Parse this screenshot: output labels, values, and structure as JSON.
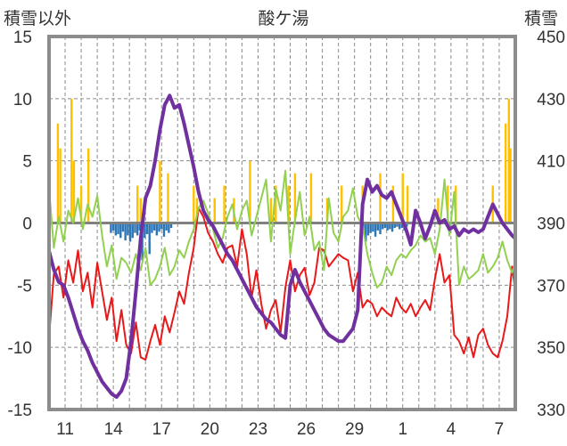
{
  "chart_data": {
    "type": "line",
    "title": "酸ケ湯",
    "left_axis_label": "積雪以外",
    "right_axis_label": "積雪",
    "left_ylim": [
      -15,
      15
    ],
    "left_yticks": [
      -15,
      -10,
      -5,
      0,
      5,
      10,
      15
    ],
    "right_ylim": [
      330,
      450
    ],
    "right_yticks": [
      330,
      350,
      370,
      390,
      410,
      430,
      450
    ],
    "x_range": [
      0,
      29
    ],
    "x_ticks": [
      {
        "x": 1,
        "label": "11"
      },
      {
        "x": 4,
        "label": "14"
      },
      {
        "x": 7,
        "label": "17"
      },
      {
        "x": 10,
        "label": "20"
      },
      {
        "x": 13,
        "label": "23"
      },
      {
        "x": 16,
        "label": "26"
      },
      {
        "x": 19,
        "label": "29"
      },
      {
        "x": 22,
        "label": "1"
      },
      {
        "x": 25,
        "label": "4"
      },
      {
        "x": 28,
        "label": "7"
      }
    ],
    "grid": "dashed",
    "series": [
      {
        "name": "red-series",
        "axis": "left",
        "color": "#e8191a",
        "x": [
          0,
          0.3,
          0.6,
          0.9,
          1.2,
          1.5,
          1.8,
          2.1,
          2.4,
          2.7,
          3,
          3.3,
          3.6,
          3.9,
          4.2,
          4.5,
          4.8,
          5.1,
          5.4,
          5.7,
          6,
          6.3,
          6.6,
          6.9,
          7.2,
          7.5,
          7.8,
          8.1,
          8.4,
          8.7,
          9,
          9.3,
          9.6,
          9.9,
          10.2,
          10.5,
          10.8,
          11.1,
          11.4,
          11.7,
          12,
          12.3,
          12.6,
          12.9,
          13.2,
          13.5,
          13.8,
          14.1,
          14.4,
          14.7,
          15,
          15.3,
          15.6,
          15.9,
          16.2,
          16.5,
          16.8,
          17.1,
          17.4,
          17.7,
          18,
          18.3,
          18.6,
          18.9,
          19.2,
          19.5,
          19.8,
          20.1,
          20.4,
          20.7,
          21,
          21.3,
          21.6,
          21.9,
          22.2,
          22.5,
          22.8,
          23.1,
          23.4,
          23.7,
          24,
          24.3,
          24.6,
          24.9,
          25.2,
          25.5,
          25.8,
          26.1,
          26.4,
          26.7,
          27,
          27.3,
          27.6,
          27.9,
          28.2,
          28.5,
          28.8,
          29
        ],
        "values": [
          -9.2,
          -4.1,
          -3.5,
          -6.0,
          -3.0,
          -4.8,
          -2.2,
          -5.5,
          -4.0,
          -6.8,
          -3.2,
          -5.5,
          -7.8,
          -6.0,
          -9.5,
          -7.0,
          -9.8,
          -10.5,
          -8.0,
          -10.8,
          -11.0,
          -9.5,
          -8.2,
          -9.8,
          -7.5,
          -8.8,
          -7.2,
          -5.5,
          -6.5,
          -4.0,
          -2.0,
          1.2,
          0.5,
          -0.8,
          -1.5,
          -2.5,
          -3.2,
          -2.0,
          -1.8,
          -3.5,
          -0.5,
          -2.5,
          -6.0,
          -3.8,
          -6.5,
          -8.5,
          -7.0,
          -6.2,
          -8.8,
          -5.2,
          -3.0,
          -5.5,
          -4.2,
          -3.6,
          -5.8,
          -4.8,
          -2.0,
          -2.2,
          -3.5,
          -3.0,
          -2.5,
          -2.8,
          -3.0,
          -5.5,
          -4.0,
          -6.8,
          -6.2,
          -6.5,
          -7.5,
          -6.8,
          -7.2,
          -7.5,
          -6.0,
          -6.8,
          -7.2,
          -6.5,
          -7.5,
          -6.8,
          -6.2,
          -7.0,
          -4.5,
          -2.5,
          -4.8,
          -4.2,
          -9.0,
          -9.5,
          -10.5,
          -9.2,
          -10.8,
          -9.0,
          -8.5,
          -9.8,
          -10.5,
          -10.8,
          -9.5,
          -7.5,
          -3.5,
          -5.5
        ]
      },
      {
        "name": "green-series",
        "axis": "left",
        "color": "#92d050",
        "x": [
          0,
          0.3,
          0.6,
          0.9,
          1.2,
          1.5,
          1.8,
          2.1,
          2.4,
          2.7,
          3,
          3.3,
          3.6,
          3.9,
          4.2,
          4.5,
          4.8,
          5.1,
          5.4,
          5.7,
          6,
          6.3,
          6.6,
          6.9,
          7.2,
          7.5,
          7.8,
          8.1,
          8.4,
          8.7,
          9,
          9.3,
          9.6,
          9.9,
          10.2,
          10.5,
          10.8,
          11.1,
          11.4,
          11.7,
          12,
          12.3,
          12.6,
          12.9,
          13.2,
          13.5,
          13.8,
          14.1,
          14.4,
          14.7,
          15,
          15.3,
          15.6,
          15.9,
          16.2,
          16.5,
          16.8,
          17.1,
          17.4,
          17.7,
          18,
          18.3,
          18.6,
          18.9,
          19.2,
          19.5,
          19.8,
          20.1,
          20.4,
          20.7,
          21,
          21.3,
          21.6,
          21.9,
          22.2,
          22.5,
          22.8,
          23.1,
          23.4,
          23.7,
          24,
          24.3,
          24.6,
          24.9,
          25.2,
          25.5,
          25.8,
          26.1,
          26.4,
          26.7,
          27,
          27.3,
          27.6,
          27.9,
          28.2,
          28.5,
          28.8,
          29
        ],
        "values": [
          2.8,
          -2.0,
          0.5,
          -1.5,
          1.0,
          0.0,
          2.0,
          -0.5,
          1.5,
          0.5,
          2.2,
          -1.0,
          -3.5,
          -1.8,
          -4.5,
          -2.8,
          -3.2,
          -4.0,
          -2.5,
          -3.8,
          -2.0,
          -5.0,
          -4.5,
          -3.5,
          -2.0,
          -4.2,
          -3.5,
          -2.2,
          -2.8,
          -1.5,
          -0.5,
          1.2,
          1.8,
          0.8,
          -0.5,
          -2.0,
          -1.2,
          0.5,
          1.5,
          -0.5,
          1.0,
          1.8,
          -1.0,
          0.5,
          2.0,
          3.5,
          -1.5,
          2.8,
          1.0,
          4.2,
          -2.5,
          0.2,
          2.5,
          -1.0,
          0.5,
          -2.2,
          -1.5,
          -3.8,
          2.0,
          -0.8,
          -1.5,
          0.5,
          1.0,
          2.8,
          0.5,
          -0.2,
          -2.5,
          -4.0,
          -5.2,
          -4.8,
          -3.5,
          -4.2,
          -3.0,
          -2.5,
          -2.8,
          -2.2,
          -1.8,
          -1.0,
          -1.5,
          -1.2,
          -2.5,
          -0.5,
          3.5,
          -1.0,
          2.5,
          -5.0,
          -3.5,
          -4.5,
          -4.2,
          -3.8,
          -2.5,
          -4.0,
          -3.5,
          -2.8,
          -1.5,
          -3.0,
          -4.0,
          -3.2
        ]
      },
      {
        "name": "purple-snow-depth",
        "axis": "right",
        "color": "#7030a0",
        "x": [
          0,
          0.3,
          0.6,
          0.9,
          1.2,
          1.5,
          1.8,
          2.1,
          2.4,
          2.7,
          3,
          3.3,
          3.6,
          3.9,
          4.2,
          4.5,
          4.8,
          5.1,
          5.4,
          5.7,
          6,
          6.3,
          6.6,
          6.9,
          7.2,
          7.5,
          7.8,
          8.1,
          8.4,
          8.7,
          9,
          9.3,
          9.6,
          9.9,
          10.2,
          10.5,
          10.8,
          11.1,
          11.4,
          11.7,
          12,
          12.3,
          12.6,
          12.9,
          13.2,
          13.5,
          13.8,
          14.1,
          14.4,
          14.7,
          15,
          15.3,
          15.6,
          15.9,
          16.2,
          16.5,
          16.8,
          17.1,
          17.4,
          17.7,
          18,
          18.3,
          18.6,
          18.9,
          19.2,
          19.5,
          19.8,
          20.1,
          20.4,
          20.7,
          21,
          21.3,
          21.6,
          21.9,
          22.2,
          22.5,
          22.8,
          23.1,
          23.4,
          23.7,
          24,
          24.3,
          24.6,
          24.9,
          25.2,
          25.5,
          25.8,
          26.1,
          26.4,
          26.7,
          27,
          27.3,
          27.6,
          27.9,
          28.2,
          28.5,
          28.8,
          29
        ],
        "values": [
          381,
          375,
          371,
          370,
          366,
          361,
          356,
          352,
          349,
          345,
          342,
          339,
          337,
          335,
          334,
          336,
          340,
          352,
          368,
          385,
          398,
          402,
          410,
          420,
          428,
          431,
          427,
          428,
          422,
          415,
          408,
          400,
          394,
          391,
          389,
          386,
          383,
          380,
          378,
          375,
          372,
          369,
          366,
          363,
          361,
          359,
          358,
          356,
          354,
          353,
          370,
          375,
          371,
          368,
          365,
          362,
          359,
          356,
          354,
          353,
          352,
          352,
          354,
          356,
          362,
          396,
          404,
          400,
          402,
          399,
          398,
          400,
          396,
          392,
          388,
          383,
          394,
          390,
          385,
          389,
          394,
          390,
          391,
          388,
          389,
          386,
          388,
          387,
          388,
          387,
          388,
          392,
          396,
          393,
          390,
          388,
          386,
          385
        ]
      },
      {
        "name": "orange-precip-bars",
        "axis": "left",
        "type": "bar",
        "color": "#ffc000",
        "x": [
          0.55,
          0.7,
          1.4,
          1.55,
          2.0,
          2.45,
          5.5,
          5.7,
          6.9,
          7.4,
          9.0,
          9.2,
          10.3,
          10.9,
          11.5,
          12.5,
          13.8,
          14.1,
          14.9,
          15.3,
          16.3,
          17.3,
          18.2,
          19.5,
          20.6,
          21.4,
          22.0,
          22.3,
          24.2,
          24.8,
          25.3,
          27.6,
          28.4,
          28.6,
          28.7
        ],
        "values": [
          8,
          6,
          10,
          5,
          3,
          6,
          3,
          2,
          5,
          4,
          3,
          2,
          2,
          3,
          2,
          5,
          2,
          3,
          3,
          4,
          4,
          2,
          3,
          3,
          4,
          3,
          4,
          3,
          2,
          3,
          3,
          3,
          8,
          10,
          6
        ]
      },
      {
        "name": "blue-negative-bars",
        "axis": "left",
        "type": "bar",
        "color": "#2e75b6",
        "x": [
          3.85,
          4.0,
          4.15,
          4.3,
          4.45,
          4.6,
          4.75,
          4.9,
          5.05,
          5.2,
          5.35,
          5.5,
          5.65,
          5.8,
          5.95,
          6.1,
          6.25,
          6.4,
          6.55,
          6.7,
          6.85,
          7.0,
          7.15,
          7.3,
          7.45,
          7.6,
          19.4,
          19.55,
          19.7,
          19.85,
          20.0,
          20.15,
          20.3,
          20.45,
          20.6,
          20.75,
          20.9,
          21.05,
          21.2,
          21.35,
          21.5,
          21.65,
          21.8,
          21.95,
          22.1,
          22.25,
          24.9,
          25.3
        ],
        "values": [
          -0.8,
          -0.6,
          -1.0,
          -0.9,
          -1.2,
          -0.7,
          -1.4,
          -1.0,
          -1.5,
          -1.2,
          -0.8,
          -1.0,
          -0.6,
          -3.0,
          -1.2,
          -0.9,
          -2.5,
          -0.8,
          -0.6,
          -1.0,
          -0.7,
          -0.5,
          -1.1,
          -0.6,
          -0.8,
          -0.4,
          -1.2,
          -0.9,
          -1.5,
          -1.0,
          -0.8,
          -0.7,
          -1.1,
          -0.6,
          -0.9,
          -0.5,
          -0.4,
          -0.6,
          -0.5,
          -0.7,
          -0.4,
          -0.3,
          -0.5,
          -0.4,
          -0.6,
          -0.3,
          -0.4,
          -0.5
        ]
      }
    ]
  }
}
